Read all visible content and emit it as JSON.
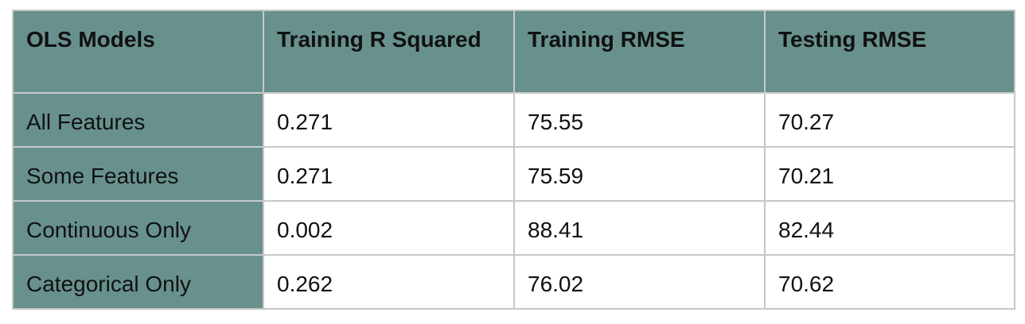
{
  "table": {
    "headers": [
      "OLS Models",
      "Training R Squared",
      "Training RMSE",
      "Testing RMSE"
    ],
    "rows": [
      [
        "All Features",
        "0.271",
        "75.55",
        "70.27"
      ],
      [
        "Some Features",
        "0.271",
        "75.59",
        "70.21"
      ],
      [
        "Continuous Only",
        "0.002",
        "88.41",
        "82.44"
      ],
      [
        "Categorical Only",
        "0.262",
        "76.02",
        "70.62"
      ]
    ]
  },
  "colors": {
    "header_background": "#68918e",
    "grid_border": "#c8c8c8",
    "cell_background": "#ffffff",
    "text": "#111111"
  }
}
